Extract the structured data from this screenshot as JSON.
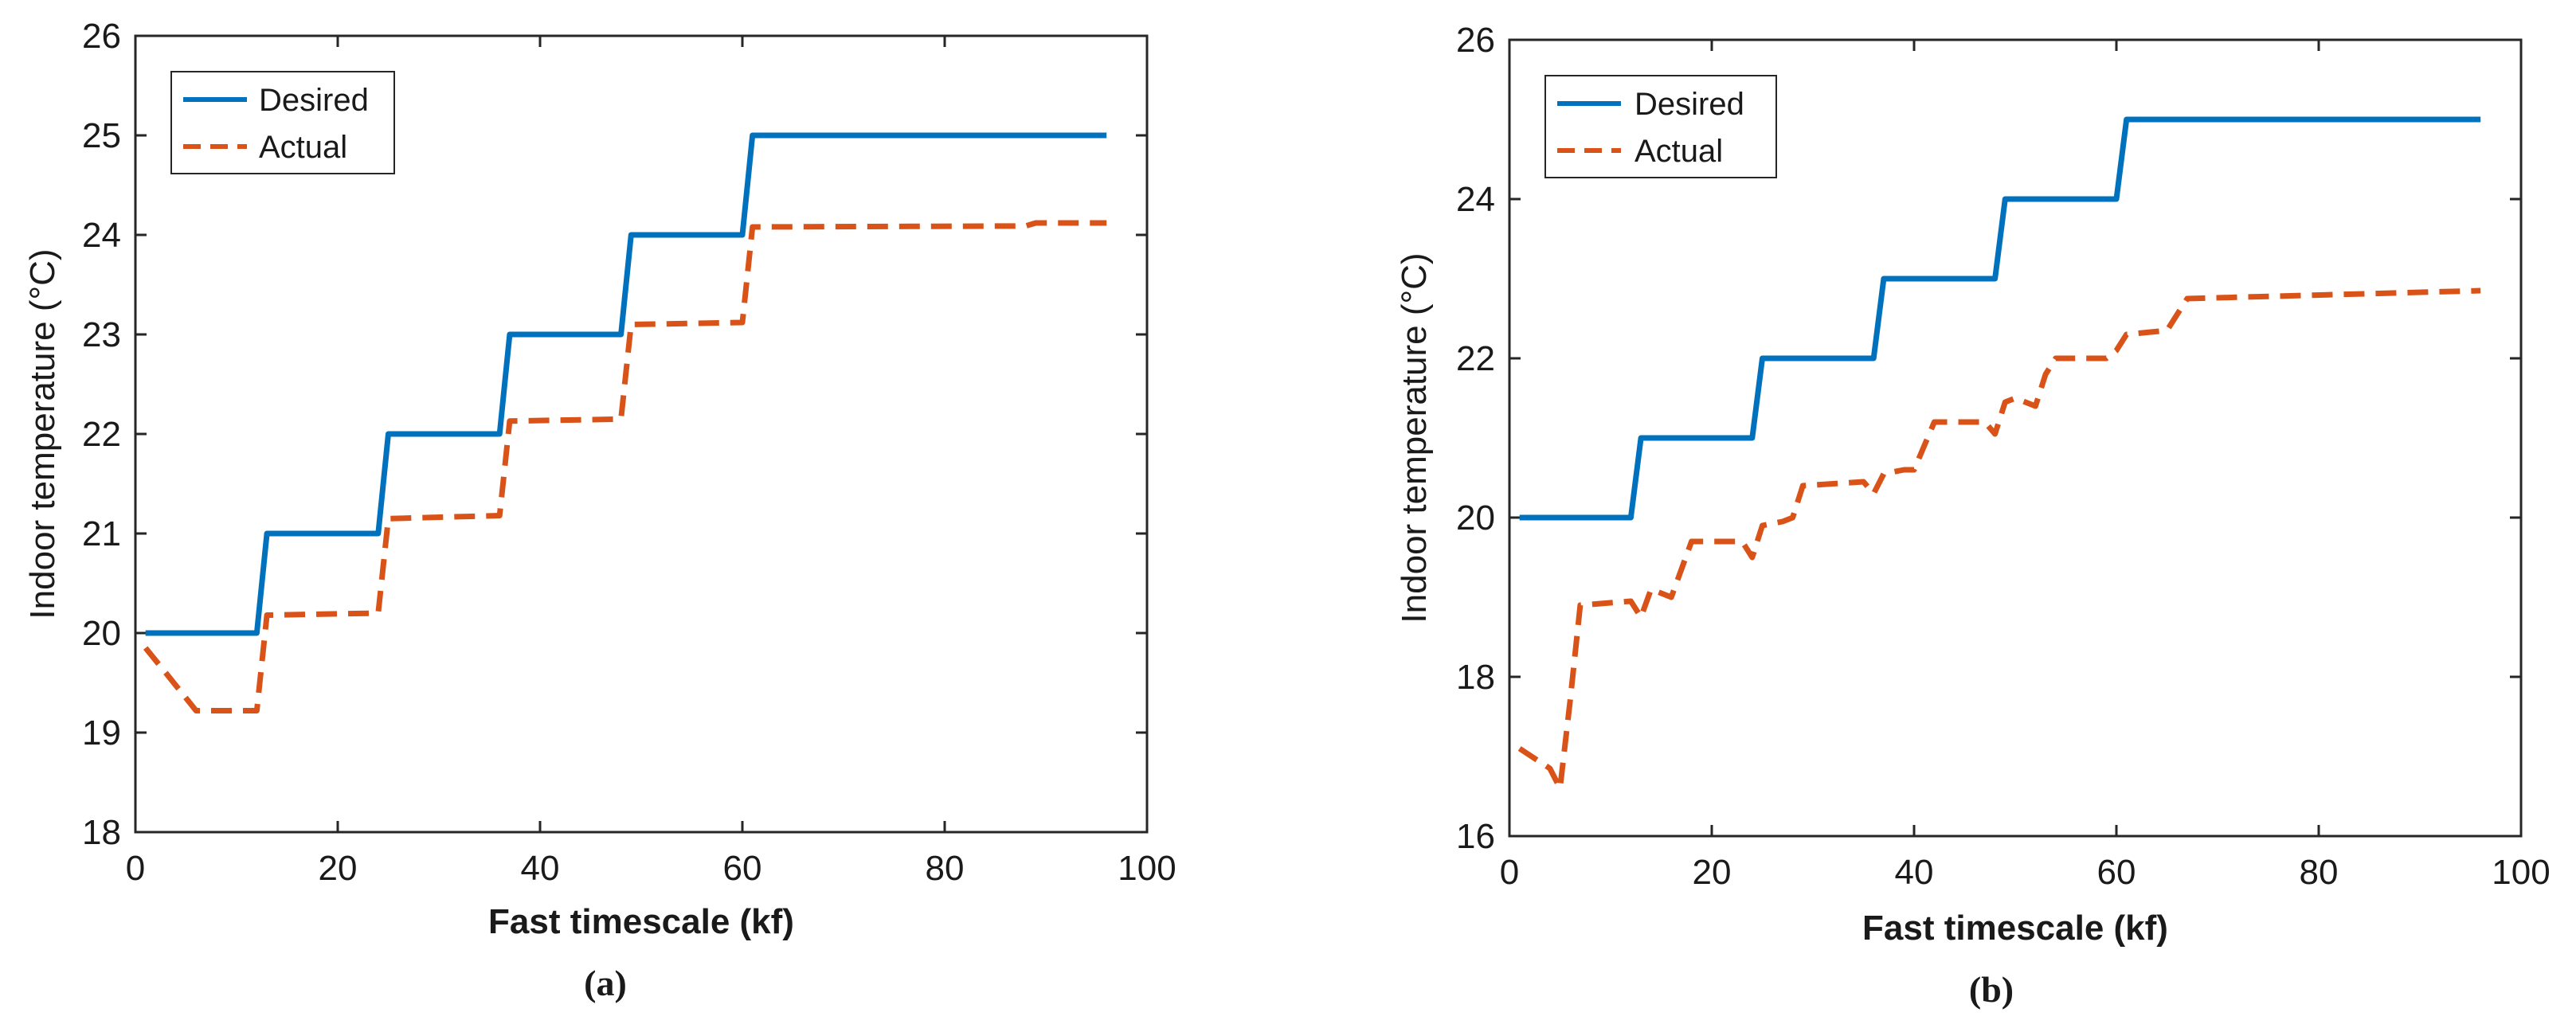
{
  "chart_data": [
    {
      "type": "line",
      "caption": "(a)",
      "xlabel": "Fast timescale (kf)",
      "ylabel": "Indoor temperature (°C)",
      "xlim": [
        0,
        100
      ],
      "ylim": [
        18,
        26
      ],
      "xticks": [
        "0",
        "20",
        "40",
        "60",
        "80",
        "100"
      ],
      "yticks": [
        "18",
        "19",
        "20",
        "21",
        "22",
        "23",
        "24",
        "25",
        "26"
      ],
      "legend_position": "top-left",
      "series": [
        {
          "name": "Desired",
          "color": "#0072BD",
          "style": "solid",
          "points": [
            [
              1,
              20
            ],
            [
              12,
              20
            ],
            [
              13,
              21
            ],
            [
              24,
              21
            ],
            [
              25,
              22
            ],
            [
              36,
              22
            ],
            [
              37,
              23
            ],
            [
              48,
              23
            ],
            [
              49,
              24
            ],
            [
              60,
              24
            ],
            [
              61,
              25
            ],
            [
              96,
              25
            ]
          ]
        },
        {
          "name": "Actual",
          "color": "#D95319",
          "style": "dashed",
          "points": [
            [
              1,
              19.85
            ],
            [
              3,
              19.6
            ],
            [
              6,
              19.22
            ],
            [
              11,
              19.22
            ],
            [
              12,
              19.22
            ],
            [
              13,
              20.18
            ],
            [
              24,
              20.2
            ],
            [
              25,
              21.15
            ],
            [
              36,
              21.18
            ],
            [
              37,
              22.13
            ],
            [
              48,
              22.15
            ],
            [
              49,
              23.1
            ],
            [
              60,
              23.12
            ],
            [
              61,
              24.08
            ],
            [
              88,
              24.09
            ],
            [
              89,
              24.12
            ],
            [
              96,
              24.12
            ]
          ]
        }
      ]
    },
    {
      "type": "line",
      "caption": "(b)",
      "xlabel": "Fast timescale (kf)",
      "ylabel": "Indoor temperature (°C)",
      "xlim": [
        0,
        100
      ],
      "ylim": [
        16,
        26
      ],
      "xticks": [
        "0",
        "20",
        "40",
        "60",
        "80",
        "100"
      ],
      "yticks": [
        "16",
        "18",
        "20",
        "22",
        "24",
        "26"
      ],
      "legend_position": "top-left",
      "series": [
        {
          "name": "Desired",
          "color": "#0072BD",
          "style": "solid",
          "points": [
            [
              1,
              20
            ],
            [
              12,
              20
            ],
            [
              13,
              21
            ],
            [
              24,
              21
            ],
            [
              25,
              22
            ],
            [
              36,
              22
            ],
            [
              37,
              23
            ],
            [
              48,
              23
            ],
            [
              49,
              24
            ],
            [
              60,
              24
            ],
            [
              61,
              25
            ],
            [
              96,
              25
            ]
          ]
        },
        {
          "name": "Actual",
          "color": "#D95319",
          "style": "dashed",
          "points": [
            [
              1,
              17.1
            ],
            [
              4,
              16.85
            ],
            [
              5,
              16.6
            ],
            [
              6,
              17.7
            ],
            [
              7,
              18.9
            ],
            [
              12,
              18.95
            ],
            [
              13,
              18.75
            ],
            [
              14,
              19.1
            ],
            [
              16,
              19.0
            ],
            [
              17,
              19.35
            ],
            [
              18,
              19.7
            ],
            [
              23,
              19.7
            ],
            [
              24,
              19.5
            ],
            [
              25,
              19.9
            ],
            [
              27,
              19.95
            ],
            [
              28,
              20.0
            ],
            [
              29,
              20.4
            ],
            [
              35,
              20.45
            ],
            [
              36,
              20.3
            ],
            [
              37,
              20.55
            ],
            [
              39,
              20.6
            ],
            [
              40,
              20.6
            ],
            [
              41,
              20.9
            ],
            [
              42,
              21.2
            ],
            [
              47,
              21.2
            ],
            [
              48,
              21.05
            ],
            [
              49,
              21.45
            ],
            [
              50,
              21.5
            ],
            [
              52,
              21.4
            ],
            [
              53,
              21.8
            ],
            [
              54,
              22.0
            ],
            [
              59,
              22.0
            ],
            [
              60,
              22.1
            ],
            [
              61,
              22.3
            ],
            [
              65,
              22.35
            ],
            [
              67,
              22.75
            ],
            [
              96,
              22.85
            ]
          ]
        }
      ]
    }
  ]
}
